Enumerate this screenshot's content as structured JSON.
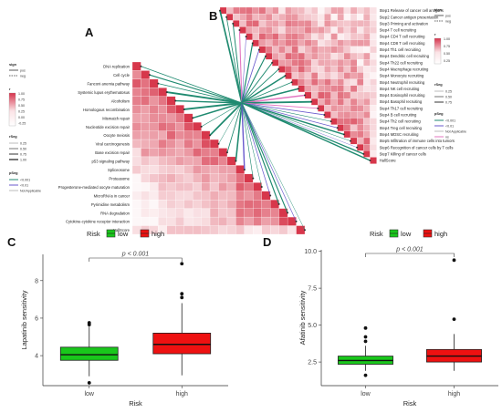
{
  "panel_labels": {
    "A": "A",
    "B": "B",
    "C": "C",
    "D": "D"
  },
  "panelA": {
    "pathways": [
      "DNA replication",
      "Cell cycle",
      "Fanconi anemia pathway",
      "Systemic lupus erythematosus",
      "Alcoholism",
      "Homologous recombination",
      "Mismatch repair",
      "Nucleotide excision repair",
      "Oocyte meiosis",
      "Viral carcinogenesis",
      "Base excision repair",
      "p53 signaling pathway",
      "Spliceosome",
      "Proteasome",
      "Progesterone-mediated oocyte maturation",
      "MicroRNAs in cancer",
      "Pyrimidine metabolism",
      "RNA degradation",
      "Cytokine-cytokine receptor interaction",
      "HallScore"
    ],
    "legend": {
      "sign_title": "sign",
      "sign_items": [
        "pos",
        "neg"
      ],
      "r_title": "r",
      "r_ticks": [
        "1.00",
        "0.75",
        "0.50",
        "0.25",
        "0.00",
        "-0.25"
      ],
      "rseg_title": "rSeg",
      "rseg_items": [
        "0.25",
        "0.50",
        "0.75",
        "1.00"
      ],
      "pseg_title": "pSeg",
      "pseg_items": [
        "<0.001",
        "<0.01",
        "Not Applicable"
      ]
    }
  },
  "panelB": {
    "steps": [
      "Step1 Release of cancer cell antigens",
      "Step2 Cancer antigen presentation",
      "Step3 Priming and activation",
      "Step4 T cell recruiting",
      "Step4 CD4 T cell recruiting",
      "Step4 CD8 T cell recruiting",
      "Step4 Th1 cell recruiting",
      "Step4 Dendritic cell recruiting",
      "Step4 Th22 cell recruiting",
      "Step4 Macrophage recruiting",
      "Step4 Monocyte recruiting",
      "Step4 Neutrophil recruiting",
      "Step4 NK cell recruiting",
      "Step4 Eosinophil recruiting",
      "Step4 Basophil recruiting",
      "Step4 Th17 cell recruiting",
      "Step4 B cell recruiting",
      "Step4 Th2 cell recruiting",
      "Step4 Treg cell recruiting",
      "Step4 MDSC recruiting",
      "Step5 Infiltration of immune cells into tumors",
      "Step6 Recognition of cancer cells by T cells",
      "Step7 Killing of cancer cells",
      "HallScore"
    ],
    "legend": {
      "sign_title": "sign",
      "sign_items": [
        "pos",
        "neg"
      ],
      "r_title": "r",
      "r_ticks": [
        "1.00",
        "0.75",
        "0.50",
        "0.25"
      ],
      "rseg_title": "rSeg",
      "rseg_items": [
        "0.25",
        "0.50",
        "0.75"
      ],
      "pseg_title": "pSeg",
      "pseg_items": [
        "<0.001",
        "<0.01",
        "Not Applicable",
        "ns"
      ]
    }
  },
  "chart_data": [
    {
      "type": "box",
      "panel": "C",
      "legend_title": "Risk",
      "categories": [
        "low",
        "high"
      ],
      "colors": [
        "#19c71b",
        "#ee1111"
      ],
      "xlabel": "Risk",
      "ylabel": "Lapatinib sensitivity",
      "yticks": [
        4,
        6,
        8
      ],
      "ylim": [
        2.4,
        9.4
      ],
      "pvalue": "p < 0.001",
      "boxes": [
        {
          "name": "low",
          "min": 2.9,
          "q1": 3.75,
          "median": 4.05,
          "q3": 4.45,
          "max": 5.55,
          "outliers": [
            5.65,
            5.75,
            2.55
          ]
        },
        {
          "name": "high",
          "min": 2.95,
          "q1": 4.1,
          "median": 4.6,
          "q3": 5.2,
          "max": 6.8,
          "outliers": [
            7.1,
            7.3,
            8.9
          ]
        }
      ]
    },
    {
      "type": "box",
      "panel": "D",
      "legend_title": "Risk",
      "categories": [
        "low",
        "high"
      ],
      "colors": [
        "#19c71b",
        "#ee1111"
      ],
      "xlabel": "Risk",
      "ylabel": "Afatinib sensitivity",
      "yticks": [
        2.5,
        5.0,
        7.5,
        10.0
      ],
      "ylim": [
        0.9,
        10.1
      ],
      "pvalue": "p < 0.001",
      "boxes": [
        {
          "name": "low",
          "min": 1.9,
          "q1": 2.35,
          "median": 2.6,
          "q3": 2.9,
          "max": 3.6,
          "outliers": [
            3.9,
            4.2,
            4.8,
            1.6
          ]
        },
        {
          "name": "high",
          "min": 1.9,
          "q1": 2.5,
          "median": 2.9,
          "q3": 3.35,
          "max": 4.4,
          "outliers": [
            5.4,
            9.4
          ]
        }
      ]
    }
  ]
}
